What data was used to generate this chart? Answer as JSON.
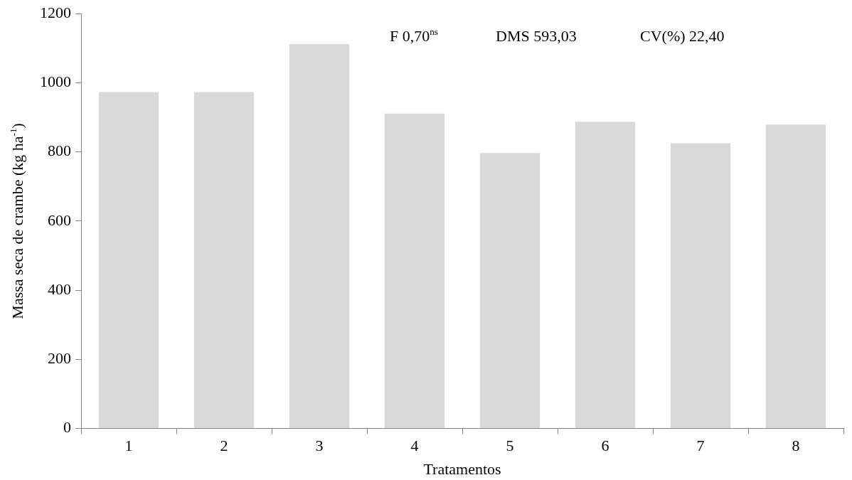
{
  "chart_data": {
    "type": "bar",
    "xlabel": "Tratamentos",
    "ylabel": "Massa seca de crambe (kg ha$^{-1}$)",
    "categories": [
      "1",
      "2",
      "3",
      "4",
      "5",
      "6",
      "7",
      "8"
    ],
    "values": [
      973,
      973,
      1112,
      911,
      797,
      887,
      825,
      879
    ],
    "color": "#d9d9d9",
    "ylim": [
      0,
      1200
    ],
    "yticks": [
      0,
      200,
      400,
      600,
      800,
      1000,
      1200
    ],
    "grid": false,
    "legend": false,
    "annotations": [
      "F 0,70$^{ns}$",
      "DMS 593,03",
      "CV(%) 22,40"
    ]
  }
}
